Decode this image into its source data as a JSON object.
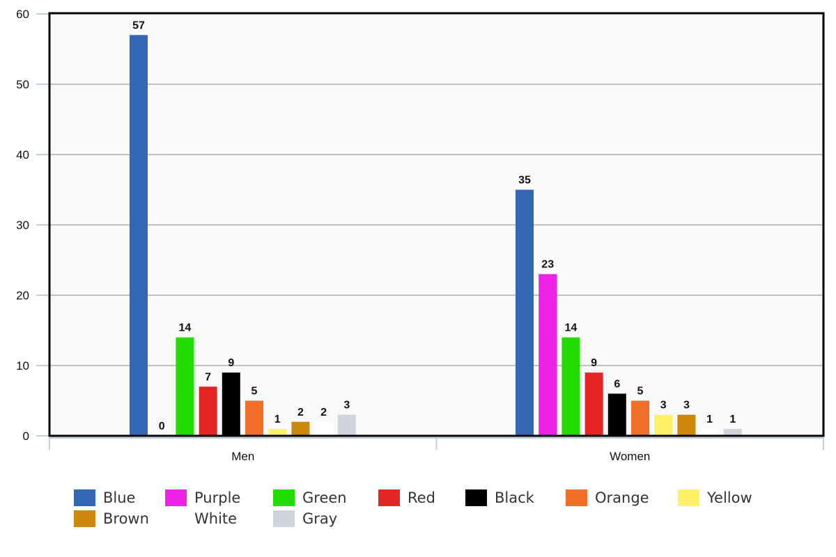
{
  "chart_data": {
    "type": "bar",
    "title": "",
    "xlabel": "",
    "ylabel": "",
    "categories": [
      "Men",
      "Women"
    ],
    "ylim": [
      0,
      60
    ],
    "yticks": [
      0,
      10,
      20,
      30,
      40,
      50,
      60
    ],
    "grid": true,
    "legend_position": "bottom",
    "data_labels": true,
    "series": [
      {
        "name": "Blue",
        "color": "#3366b3",
        "values": [
          57,
          35
        ]
      },
      {
        "name": "Purple",
        "color": "#ee22e6",
        "values": [
          0,
          23
        ]
      },
      {
        "name": "Green",
        "color": "#22dd00",
        "values": [
          14,
          14
        ]
      },
      {
        "name": "Red",
        "color": "#e52525",
        "values": [
          7,
          9
        ]
      },
      {
        "name": "Black",
        "color": "#000000",
        "values": [
          9,
          6
        ]
      },
      {
        "name": "Orange",
        "color": "#f26d25",
        "values": [
          5,
          5
        ]
      },
      {
        "name": "Yellow",
        "color": "#fff266",
        "values": [
          1,
          3
        ]
      },
      {
        "name": "Brown",
        "color": "#cc880c",
        "values": [
          2,
          3
        ]
      },
      {
        "name": "White",
        "color": "#ffffff",
        "values": [
          2,
          1
        ]
      },
      {
        "name": "Gray",
        "color": "#d0d5dd",
        "values": [
          3,
          1
        ]
      }
    ]
  },
  "legend": {
    "rows": [
      [
        "Blue",
        "Purple",
        "Green",
        "Red",
        "Black",
        "Orange",
        "Yellow"
      ],
      [
        "Brown",
        "White",
        "Gray"
      ]
    ]
  }
}
